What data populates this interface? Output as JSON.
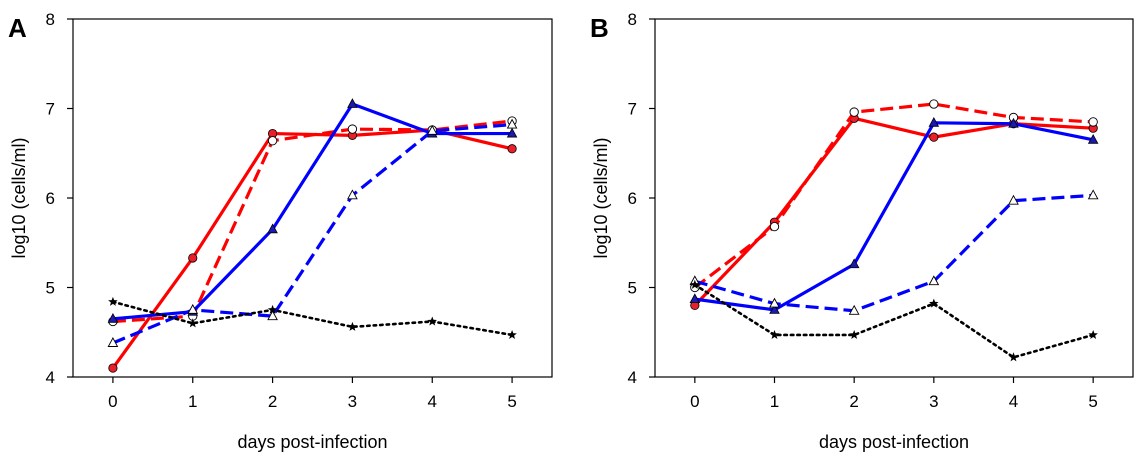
{
  "chart_data": [
    {
      "type": "line",
      "panel_label": "A",
      "xlabel": "days post-infection",
      "ylabel": "log10 (cells/ml)",
      "x": [
        0,
        1,
        2,
        3,
        4,
        5
      ],
      "xlim": [
        -0.5,
        5.5
      ],
      "ylim": [
        4,
        8
      ],
      "xticks": [
        "0",
        "1",
        "2",
        "3",
        "4",
        "5"
      ],
      "yticks": [
        "4",
        "5",
        "6",
        "7",
        "8"
      ],
      "grid": false,
      "series": [
        {
          "values": [
            4.1,
            5.33,
            6.72,
            6.7,
            6.76,
            6.55
          ],
          "color": "#ff0000",
          "dash": "solid",
          "marker": "circle-filled"
        },
        {
          "values": [
            4.62,
            4.68,
            6.64,
            6.77,
            6.76,
            6.86
          ],
          "color": "#ff0000",
          "dash": "dashed",
          "marker": "circle-open"
        },
        {
          "values": [
            4.65,
            4.73,
            5.65,
            7.05,
            6.72,
            6.72
          ],
          "color": "#0000ff",
          "dash": "solid",
          "marker": "triangle-filled"
        },
        {
          "values": [
            4.38,
            4.75,
            4.68,
            6.03,
            6.75,
            6.82
          ],
          "color": "#0000ff",
          "dash": "dashed",
          "marker": "triangle-open"
        },
        {
          "values": [
            4.84,
            4.6,
            4.75,
            4.56,
            4.62,
            4.47
          ],
          "color": "#000000",
          "dash": "dotted",
          "marker": "star"
        }
      ]
    },
    {
      "type": "line",
      "panel_label": "B",
      "xlabel": "days post-infection",
      "ylabel": "log10 (cells/ml)",
      "x": [
        0,
        1,
        2,
        3,
        4,
        5
      ],
      "xlim": [
        -0.5,
        5.5
      ],
      "ylim": [
        4,
        8
      ],
      "xticks": [
        "0",
        "1",
        "2",
        "3",
        "4",
        "5"
      ],
      "yticks": [
        "4",
        "5",
        "6",
        "7",
        "8"
      ],
      "grid": false,
      "series": [
        {
          "values": [
            4.8,
            5.73,
            6.89,
            6.68,
            6.83,
            6.78
          ],
          "color": "#ff0000",
          "dash": "solid",
          "marker": "circle-filled"
        },
        {
          "values": [
            5.0,
            5.68,
            6.96,
            7.05,
            6.9,
            6.85
          ],
          "color": "#ff0000",
          "dash": "dashed",
          "marker": "circle-open"
        },
        {
          "values": [
            4.87,
            4.75,
            5.26,
            6.84,
            6.83,
            6.65
          ],
          "color": "#0000ff",
          "dash": "solid",
          "marker": "triangle-filled"
        },
        {
          "values": [
            5.07,
            4.82,
            4.74,
            5.07,
            5.97,
            6.03
          ],
          "color": "#0000ff",
          "dash": "dashed",
          "marker": "triangle-open"
        },
        {
          "values": [
            5.03,
            4.47,
            4.47,
            4.82,
            4.22,
            4.47
          ],
          "color": "#000000",
          "dash": "dotted",
          "marker": "star"
        }
      ]
    }
  ]
}
